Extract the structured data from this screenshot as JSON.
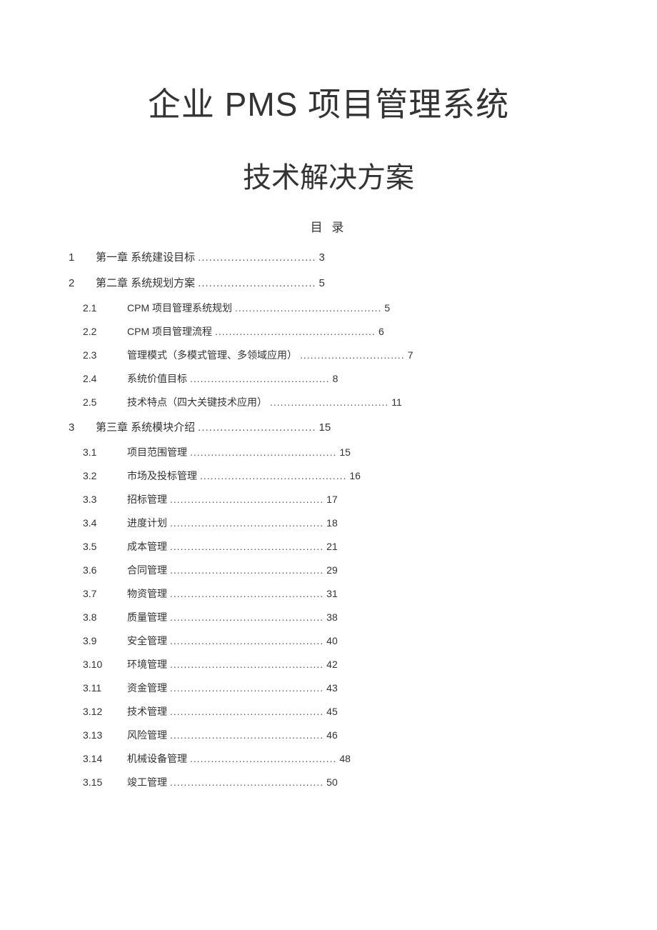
{
  "title_line1": "企业 PMS 项目管理系统",
  "title_line2": "技术解决方案",
  "toc_label": "目 录",
  "dot_width_l1": 32,
  "dot_width_l2_default": 38,
  "chapters": [
    {
      "num": "1",
      "title": "第一章 系统建设目标",
      "page": "3",
      "subs": []
    },
    {
      "num": "2",
      "title": "第二章 系统规划方案",
      "page": "5",
      "subs": [
        {
          "num": "2.1",
          "title": "CPM 项目管理系统规划",
          "page": "5",
          "dots": 42
        },
        {
          "num": "2.2",
          "title": "CPM 项目管理流程",
          "page": "6",
          "dots": 46
        },
        {
          "num": "2.3",
          "title": "管理模式（多模式管理、多领域应用）",
          "page": "7",
          "dots": 30
        },
        {
          "num": "2.4",
          "title": "系统价值目标",
          "page": "8",
          "dots": 40
        },
        {
          "num": "2.5",
          "title": "技术特点（四大关键技术应用）",
          "page": "11",
          "dots": 34
        }
      ]
    },
    {
      "num": "3",
      "title": "第三章 系统模块介绍",
      "page": "15",
      "subs": [
        {
          "num": "3.1",
          "title": "项目范围管理",
          "page": "15",
          "dots": 42
        },
        {
          "num": "3.2",
          "title": "市场及投标管理",
          "page": "16",
          "dots": 42
        },
        {
          "num": "3.3",
          "title": "招标管理",
          "page": "17",
          "dots": 44
        },
        {
          "num": "3.4",
          "title": "进度计划",
          "page": "18",
          "dots": 44
        },
        {
          "num": "3.5",
          "title": "成本管理",
          "page": "21",
          "dots": 44
        },
        {
          "num": "3.6",
          "title": "合同管理",
          "page": "29",
          "dots": 44
        },
        {
          "num": "3.7",
          "title": "物资管理",
          "page": "31",
          "dots": 44
        },
        {
          "num": "3.8",
          "title": "质量管理",
          "page": "38",
          "dots": 44
        },
        {
          "num": "3.9",
          "title": "安全管理",
          "page": "40",
          "dots": 44
        },
        {
          "num": "3.10",
          "title": "环境管理",
          "page": "42",
          "dots": 44
        },
        {
          "num": "3.11",
          "title": "资金管理",
          "page": "43",
          "dots": 44
        },
        {
          "num": "3.12",
          "title": "技术管理",
          "page": "45",
          "dots": 44
        },
        {
          "num": "3.13",
          "title": "风险管理",
          "page": "46",
          "dots": 44
        },
        {
          "num": "3.14",
          "title": "机械设备管理",
          "page": "48",
          "dots": 42
        },
        {
          "num": "3.15",
          "title": "竣工管理",
          "page": "50",
          "dots": 44
        }
      ]
    }
  ]
}
